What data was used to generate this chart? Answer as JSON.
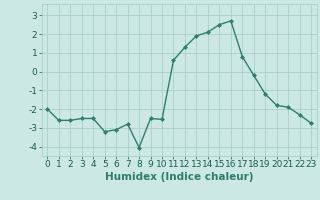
{
  "xlabel": "Humidex (Indice chaleur)",
  "x": [
    0,
    1,
    2,
    3,
    4,
    5,
    6,
    7,
    8,
    9,
    10,
    11,
    12,
    13,
    14,
    15,
    16,
    17,
    18,
    19,
    20,
    21,
    22,
    23
  ],
  "y": [
    -2.0,
    -2.6,
    -2.6,
    -2.5,
    -2.5,
    -3.2,
    -3.1,
    -2.8,
    -4.05,
    -2.5,
    -2.55,
    0.6,
    1.3,
    1.9,
    2.1,
    2.5,
    2.7,
    0.8,
    -0.2,
    -1.2,
    -1.8,
    -1.9,
    -2.3,
    -2.75
  ],
  "line_color": "#2e7d6e",
  "marker": "D",
  "marker_size": 2.0,
  "bg_color": "#cce8e4",
  "grid_color": "#aacfca",
  "ylim": [
    -4.5,
    3.6
  ],
  "yticks": [
    -4,
    -3,
    -2,
    -1,
    0,
    1,
    2,
    3
  ],
  "xlim": [
    -0.5,
    23.5
  ],
  "tick_fontsize": 6.5,
  "label_fontsize": 7.5,
  "line_width": 1.0
}
